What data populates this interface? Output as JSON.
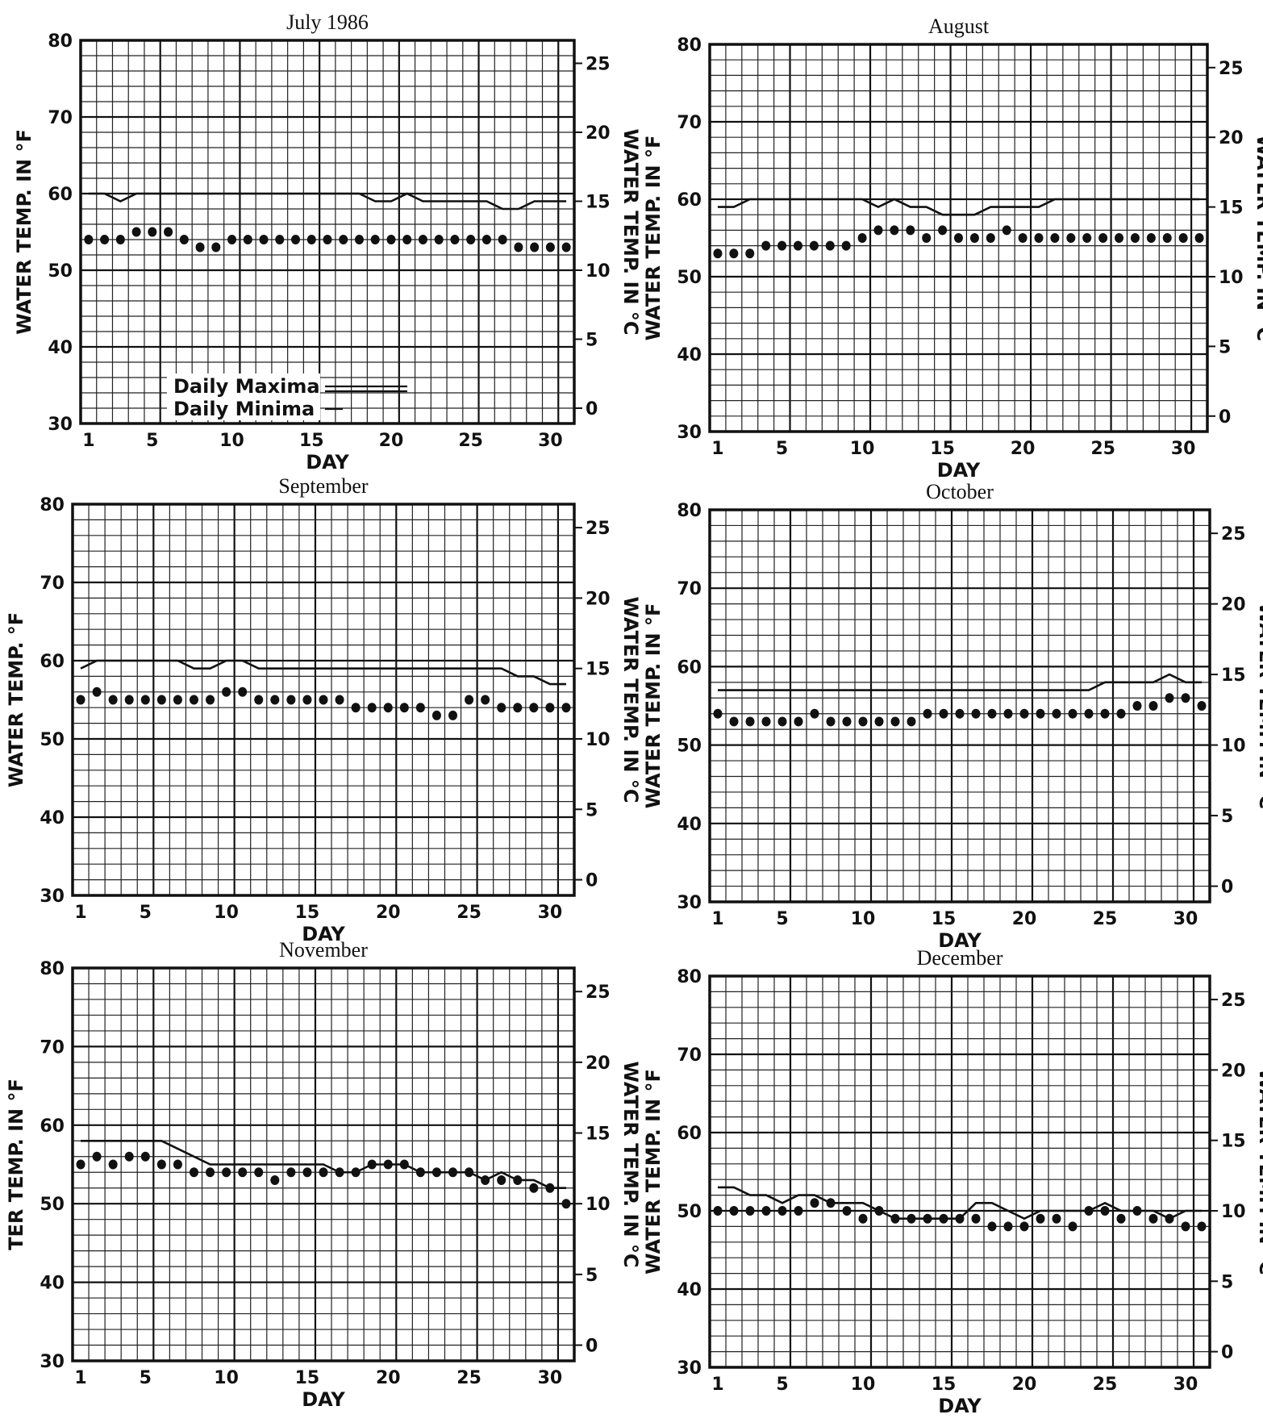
{
  "chart_data": [
    {
      "type": "line",
      "title": "July 1986",
      "xlabel": "DAY",
      "ylabel": "WATER TEMP. IN °F",
      "ylabel_right": "WATER TEMP. IN °C",
      "x_ticks": [
        "1",
        "5",
        "10",
        "15",
        "20",
        "25",
        "30"
      ],
      "y_ticks": [
        "30",
        "40",
        "50",
        "60",
        "70",
        "80"
      ],
      "y2_ticks": [
        "0",
        "5",
        "10",
        "15",
        "20",
        "25"
      ],
      "xlim": [
        0.5,
        31.5
      ],
      "ylim": [
        30,
        80
      ],
      "legend": [
        "Daily Maxima",
        "Daily Minima"
      ],
      "days": [
        1,
        2,
        3,
        4,
        5,
        6,
        7,
        8,
        9,
        10,
        11,
        12,
        13,
        14,
        15,
        16,
        17,
        18,
        19,
        20,
        21,
        22,
        23,
        24,
        25,
        26,
        27,
        28,
        29,
        30,
        31
      ],
      "series": [
        {
          "name": "Daily Maxima",
          "values": [
            60,
            60,
            59,
            60,
            60,
            60,
            60,
            60,
            60,
            60,
            60,
            60,
            60,
            60,
            60,
            60,
            60,
            60,
            59,
            59,
            60,
            59,
            59,
            59,
            59,
            59,
            58,
            58,
            59,
            59,
            59
          ]
        },
        {
          "name": "Daily Minima",
          "values": [
            54,
            54,
            54,
            55,
            55,
            55,
            54,
            53,
            53,
            54,
            54,
            54,
            54,
            54,
            54,
            54,
            54,
            54,
            54,
            54,
            54,
            54,
            54,
            54,
            54,
            54,
            54,
            53,
            53,
            53,
            53
          ]
        }
      ]
    },
    {
      "type": "line",
      "title": "August",
      "xlabel": "DAY",
      "ylabel": "WATER TEMP. IN °F",
      "ylabel_right": "WATER TEMP. IN °C",
      "x_ticks": [
        "1",
        "5",
        "10",
        "15",
        "20",
        "25",
        "30"
      ],
      "y_ticks": [
        "30",
        "40",
        "50",
        "60",
        "70",
        "80"
      ],
      "y2_ticks": [
        "0",
        "5",
        "10",
        "15",
        "20",
        "25"
      ],
      "xlim": [
        0.5,
        31.5
      ],
      "ylim": [
        30,
        80
      ],
      "days": [
        1,
        2,
        3,
        4,
        5,
        6,
        7,
        8,
        9,
        10,
        11,
        12,
        13,
        14,
        15,
        16,
        17,
        18,
        19,
        20,
        21,
        22,
        23,
        24,
        25,
        26,
        27,
        28,
        29,
        30,
        31
      ],
      "series": [
        {
          "name": "Daily Maxima",
          "values": [
            59,
            59,
            60,
            60,
            60,
            60,
            60,
            60,
            60,
            60,
            59,
            60,
            59,
            59,
            58,
            58,
            58,
            59,
            59,
            59,
            59,
            60,
            60,
            60,
            60,
            60,
            60,
            60,
            60,
            60,
            60
          ]
        },
        {
          "name": "Daily Minima",
          "values": [
            53,
            53,
            53,
            54,
            54,
            54,
            54,
            54,
            54,
            55,
            56,
            56,
            56,
            55,
            56,
            55,
            55,
            55,
            56,
            55,
            55,
            55,
            55,
            55,
            55,
            55,
            55,
            55,
            55,
            55,
            55
          ]
        }
      ]
    },
    {
      "type": "line",
      "title": "September",
      "xlabel": "DAY",
      "ylabel": "WATER TEMP. °F",
      "ylabel_right": "WATER TEMP. IN °C",
      "x_ticks": [
        "1",
        "5",
        "10",
        "15",
        "20",
        "25",
        "30"
      ],
      "y_ticks": [
        "30",
        "40",
        "50",
        "60",
        "70",
        "80"
      ],
      "y2_ticks": [
        "0",
        "5",
        "10",
        "15",
        "20",
        "25"
      ],
      "xlim": [
        0.5,
        31.5
      ],
      "ylim": [
        30,
        80
      ],
      "days": [
        1,
        2,
        3,
        4,
        5,
        6,
        7,
        8,
        9,
        10,
        11,
        12,
        13,
        14,
        15,
        16,
        17,
        18,
        19,
        20,
        21,
        22,
        23,
        24,
        25,
        26,
        27,
        28,
        29,
        30,
        31
      ],
      "series": [
        {
          "name": "Daily Maxima",
          "values": [
            59,
            60,
            60,
            60,
            60,
            60,
            60,
            59,
            59,
            60,
            60,
            59,
            59,
            59,
            59,
            59,
            59,
            59,
            59,
            59,
            59,
            59,
            59,
            59,
            59,
            59,
            59,
            58,
            58,
            57,
            57
          ]
        },
        {
          "name": "Daily Minima",
          "values": [
            55,
            56,
            55,
            55,
            55,
            55,
            55,
            55,
            55,
            56,
            56,
            55,
            55,
            55,
            55,
            55,
            55,
            54,
            54,
            54,
            54,
            54,
            53,
            53,
            55,
            55,
            54,
            54,
            54,
            54,
            54
          ]
        }
      ]
    },
    {
      "type": "line",
      "title": "October",
      "xlabel": "DAY",
      "ylabel": "WATER TEMP. IN °F",
      "ylabel_right": "WATER TEMP. IN °C",
      "x_ticks": [
        "1",
        "5",
        "10",
        "15",
        "20",
        "25",
        "30"
      ],
      "y_ticks": [
        "30",
        "40",
        "50",
        "60",
        "70",
        "80"
      ],
      "y2_ticks": [
        "0",
        "5",
        "10",
        "15",
        "20",
        "25"
      ],
      "xlim": [
        0.5,
        31.5
      ],
      "ylim": [
        30,
        80
      ],
      "days": [
        1,
        2,
        3,
        4,
        5,
        6,
        7,
        8,
        9,
        10,
        11,
        12,
        13,
        14,
        15,
        16,
        17,
        18,
        19,
        20,
        21,
        22,
        23,
        24,
        25,
        26,
        27,
        28,
        29,
        30,
        31
      ],
      "series": [
        {
          "name": "Daily Maxima",
          "values": [
            57,
            57,
            57,
            57,
            57,
            57,
            57,
            57,
            57,
            57,
            57,
            57,
            57,
            57,
            57,
            57,
            57,
            57,
            57,
            57,
            57,
            57,
            57,
            57,
            58,
            58,
            58,
            58,
            59,
            58,
            58
          ]
        },
        {
          "name": "Daily Minima",
          "values": [
            54,
            53,
            53,
            53,
            53,
            53,
            54,
            53,
            53,
            53,
            53,
            53,
            53,
            54,
            54,
            54,
            54,
            54,
            54,
            54,
            54,
            54,
            54,
            54,
            54,
            54,
            55,
            55,
            56,
            56,
            55
          ]
        }
      ]
    },
    {
      "type": "line",
      "title": "November",
      "xlabel": "DAY",
      "ylabel": "TER TEMP. IN °F",
      "ylabel_right": "WATER TEMP. IN °C",
      "x_ticks": [
        "1",
        "5",
        "10",
        "15",
        "20",
        "25",
        "30"
      ],
      "y_ticks": [
        "30",
        "40",
        "50",
        "60",
        "70",
        "80"
      ],
      "y2_ticks": [
        "0",
        "5",
        "10",
        "15",
        "20",
        "25"
      ],
      "xlim": [
        0.5,
        31.5
      ],
      "ylim": [
        30,
        80
      ],
      "days": [
        1,
        2,
        3,
        4,
        5,
        6,
        7,
        8,
        9,
        10,
        11,
        12,
        13,
        14,
        15,
        16,
        17,
        18,
        19,
        20,
        21,
        22,
        23,
        24,
        25,
        26,
        27,
        28,
        29,
        30,
        31
      ],
      "series": [
        {
          "name": "Daily Maxima",
          "values": [
            58,
            58,
            58,
            58,
            58,
            58,
            57,
            56,
            55,
            55,
            55,
            55,
            55,
            55,
            55,
            55,
            54,
            54,
            55,
            55,
            55,
            54,
            54,
            54,
            54,
            53,
            54,
            53,
            53,
            52,
            52
          ]
        },
        {
          "name": "Daily Minima",
          "values": [
            55,
            56,
            55,
            56,
            56,
            55,
            55,
            54,
            54,
            54,
            54,
            54,
            53,
            54,
            54,
            54,
            54,
            54,
            55,
            55,
            55,
            54,
            54,
            54,
            54,
            53,
            53,
            53,
            52,
            52,
            50
          ]
        }
      ]
    },
    {
      "type": "line",
      "title": "December",
      "xlabel": "DAY",
      "ylabel": "WATER TEMP. IN °F",
      "ylabel_right": "WATER TEMP. IN °C",
      "x_ticks": [
        "1",
        "5",
        "10",
        "15",
        "20",
        "25",
        "30"
      ],
      "y_ticks": [
        "30",
        "40",
        "50",
        "60",
        "70",
        "80"
      ],
      "y2_ticks": [
        "0",
        "5",
        "10",
        "15",
        "20",
        "25"
      ],
      "xlim": [
        0.5,
        31.5
      ],
      "ylim": [
        30,
        80
      ],
      "days": [
        1,
        2,
        3,
        4,
        5,
        6,
        7,
        8,
        9,
        10,
        11,
        12,
        13,
        14,
        15,
        16,
        17,
        18,
        19,
        20,
        21,
        22,
        23,
        24,
        25,
        26,
        27,
        28,
        29,
        30,
        31
      ],
      "series": [
        {
          "name": "Daily Maxima",
          "values": [
            53,
            53,
            52,
            52,
            51,
            52,
            52,
            51,
            51,
            51,
            50,
            49,
            49,
            49,
            49,
            49,
            51,
            51,
            50,
            49,
            50,
            50,
            50,
            50,
            51,
            50,
            50,
            50,
            49,
            50,
            50
          ]
        },
        {
          "name": "Daily Minima",
          "values": [
            50,
            50,
            50,
            50,
            50,
            50,
            51,
            51,
            50,
            49,
            50,
            49,
            49,
            49,
            49,
            49,
            49,
            48,
            48,
            48,
            49,
            49,
            48,
            50,
            50,
            49,
            50,
            49,
            49,
            48,
            48
          ]
        }
      ]
    }
  ]
}
